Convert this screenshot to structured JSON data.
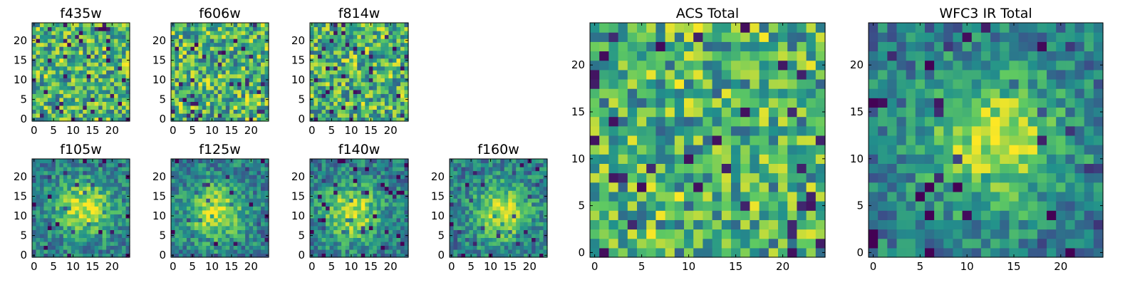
{
  "chart_data": [
    {
      "type": "heatmap",
      "title": "f435w",
      "pattern": "noise",
      "seed": 11,
      "xticks": [
        0,
        5,
        10,
        15,
        20
      ],
      "yticks": [
        0,
        5,
        10,
        15,
        20
      ],
      "xlim": [
        0,
        24
      ],
      "ylim": [
        0,
        24
      ]
    },
    {
      "type": "heatmap",
      "title": "f606w",
      "pattern": "noise",
      "seed": 23,
      "xticks": [
        0,
        5,
        10,
        15,
        20
      ],
      "yticks": [
        0,
        5,
        10,
        15,
        20
      ],
      "xlim": [
        0,
        24
      ],
      "ylim": [
        0,
        24
      ]
    },
    {
      "type": "heatmap",
      "title": "f814w",
      "pattern": "noise",
      "seed": 37,
      "xticks": [
        0,
        5,
        10,
        15,
        20
      ],
      "yticks": [
        0,
        5,
        10,
        15,
        20
      ],
      "xlim": [
        0,
        24
      ],
      "ylim": [
        0,
        24
      ]
    },
    {
      "type": "heatmap",
      "title": "f105w",
      "pattern": "source",
      "seed": 41,
      "xticks": [
        0,
        5,
        10,
        15,
        20
      ],
      "yticks": [
        0,
        5,
        10,
        15,
        20
      ],
      "xlim": [
        0,
        24
      ],
      "ylim": [
        0,
        24
      ],
      "center": [
        13,
        12
      ]
    },
    {
      "type": "heatmap",
      "title": "f125w",
      "pattern": "source",
      "seed": 53,
      "xticks": [
        0,
        5,
        10,
        15,
        20
      ],
      "yticks": [
        0,
        5,
        10,
        15,
        20
      ],
      "xlim": [
        0,
        24
      ],
      "ylim": [
        0,
        24
      ],
      "center": [
        11,
        11
      ]
    },
    {
      "type": "heatmap",
      "title": "f140w",
      "pattern": "source",
      "seed": 67,
      "xticks": [
        0,
        5,
        10,
        15,
        20
      ],
      "yticks": [
        0,
        5,
        10,
        15,
        20
      ],
      "xlim": [
        0,
        24
      ],
      "ylim": [
        0,
        24
      ],
      "center": [
        10,
        11
      ]
    },
    {
      "type": "heatmap",
      "title": "f160w",
      "pattern": "source",
      "seed": 79,
      "xticks": [
        0,
        5,
        10,
        15,
        20
      ],
      "yticks": [
        0,
        5,
        10,
        15,
        20
      ],
      "xlim": [
        0,
        24
      ],
      "ylim": [
        0,
        24
      ],
      "center": [
        13,
        11
      ]
    },
    {
      "type": "heatmap",
      "title": "ACS Total",
      "pattern": "noise",
      "seed": 97,
      "xticks": [
        0,
        5,
        10,
        15,
        20
      ],
      "yticks": [
        0,
        5,
        10,
        15,
        20
      ],
      "xlim": [
        0,
        24
      ],
      "ylim": [
        0,
        24
      ]
    },
    {
      "type": "heatmap",
      "title": "WFC3 IR Total",
      "pattern": "source",
      "seed": 101,
      "xticks": [
        0,
        5,
        10,
        15,
        20
      ],
      "yticks": [
        0,
        5,
        10,
        15,
        20
      ],
      "xlim": [
        0,
        24
      ],
      "ylim": [
        0,
        24
      ],
      "center": [
        13,
        12
      ]
    }
  ],
  "colormap": [
    "#440154",
    "#3b528b",
    "#21918c",
    "#5ec962",
    "#fde725"
  ]
}
